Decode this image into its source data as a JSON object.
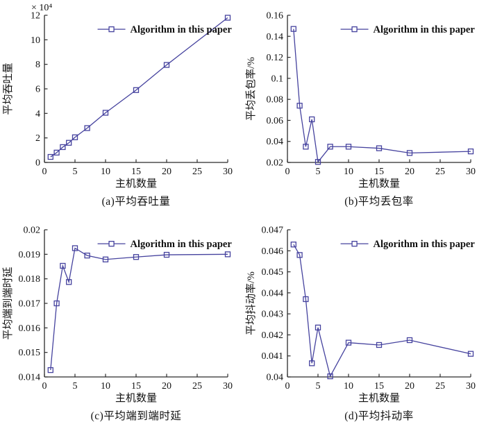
{
  "figure": {
    "legend_label": "Algorithm in this paper",
    "series_color": "#45429e",
    "text_color": "#111111",
    "axis_color": "#2b2b2b",
    "marker": "open-square"
  },
  "chart_data": [
    {
      "id": "a",
      "type": "line",
      "title": "(a)平均吞吐量",
      "xlabel": "主机数量",
      "ylabel": "平均吞吐量",
      "offset_text": "× 10⁴",
      "legend": "Algorithm in this paper",
      "xlim": [
        0,
        30
      ],
      "ylim": [
        0,
        12
      ],
      "xticks": {
        "values": [
          0,
          5,
          10,
          15,
          20,
          25,
          30
        ],
        "labels": [
          "0",
          "5",
          "10",
          "15",
          "20",
          "25",
          "30"
        ]
      },
      "yticks": {
        "values": [
          0,
          2,
          4,
          6,
          8,
          10,
          12
        ],
        "labels": [
          "0",
          "2",
          "4",
          "6",
          "8",
          "10",
          "12"
        ]
      },
      "x": [
        1,
        2,
        3,
        4,
        5,
        7,
        10,
        15,
        20,
        30
      ],
      "y": [
        0.45,
        0.8,
        1.25,
        1.6,
        2.05,
        2.8,
        4.05,
        5.9,
        7.95,
        11.8
      ]
    },
    {
      "id": "b",
      "type": "line",
      "title": "(b)平均丢包率",
      "xlabel": "主机数量",
      "ylabel": "平均丢包率/%",
      "offset_text": "",
      "legend": "Algorithm in this paper",
      "xlim": [
        0,
        30
      ],
      "ylim": [
        0.02,
        0.16
      ],
      "xticks": {
        "values": [
          0,
          5,
          10,
          15,
          20,
          25,
          30
        ],
        "labels": [
          "0",
          "5",
          "10",
          "15",
          "20",
          "25",
          "30"
        ]
      },
      "yticks": {
        "values": [
          0.02,
          0.04,
          0.06,
          0.08,
          0.1,
          0.12,
          0.14,
          0.16
        ],
        "labels": [
          "0.02",
          "0.04",
          "0.06",
          "0.08",
          "0.1",
          "0.12",
          "0.14",
          "0.16"
        ]
      },
      "x": [
        1,
        2,
        3,
        4,
        5,
        7,
        10,
        15,
        20,
        30
      ],
      "y": [
        0.147,
        0.074,
        0.035,
        0.061,
        0.0205,
        0.035,
        0.035,
        0.0335,
        0.029,
        0.0305
      ]
    },
    {
      "id": "c",
      "type": "line",
      "title": "(c)平均端到端时延",
      "xlabel": "主机数量",
      "ylabel": "平均端到端时延",
      "offset_text": "",
      "legend": "Algorithm in this paper",
      "xlim": [
        0,
        30
      ],
      "ylim": [
        0.014,
        0.02
      ],
      "xticks": {
        "values": [
          0,
          5,
          10,
          15,
          20,
          25,
          30
        ],
        "labels": [
          "0",
          "5",
          "10",
          "15",
          "20",
          "25",
          "30"
        ]
      },
      "yticks": {
        "values": [
          0.014,
          0.015,
          0.016,
          0.017,
          0.018,
          0.019,
          0.02
        ],
        "labels": [
          "0.014",
          "0.015",
          "0.016",
          "0.017",
          "0.018",
          "0.019",
          "0.02"
        ]
      },
      "x": [
        1,
        2,
        3,
        4,
        5,
        7,
        10,
        15,
        20,
        30
      ],
      "y": [
        0.01428,
        0.017,
        0.01853,
        0.01787,
        0.01925,
        0.01895,
        0.01879,
        0.01889,
        0.01898,
        0.019
      ]
    },
    {
      "id": "d",
      "type": "line",
      "title": "(d)平均抖动率",
      "xlabel": "主机数量",
      "ylabel": "平均抖动率/%",
      "offset_text": "",
      "legend": "Algorithm in this paper",
      "xlim": [
        0,
        30
      ],
      "ylim": [
        0.04,
        0.047
      ],
      "xticks": {
        "values": [
          0,
          5,
          10,
          15,
          20,
          25,
          30
        ],
        "labels": [
          "0",
          "5",
          "10",
          "15",
          "20",
          "25",
          "30"
        ]
      },
      "yticks": {
        "values": [
          0.04,
          0.041,
          0.042,
          0.043,
          0.044,
          0.045,
          0.046,
          0.047
        ],
        "labels": [
          "0.04",
          "0.041",
          "0.042",
          "0.043",
          "0.044",
          "0.045",
          "0.046",
          "0.047"
        ]
      },
      "x": [
        1,
        2,
        3,
        4,
        5,
        7,
        10,
        15,
        20,
        30
      ],
      "y": [
        0.0463,
        0.0458,
        0.0437,
        0.04065,
        0.04235,
        0.04003,
        0.04163,
        0.04152,
        0.04175,
        0.0411
      ]
    }
  ]
}
